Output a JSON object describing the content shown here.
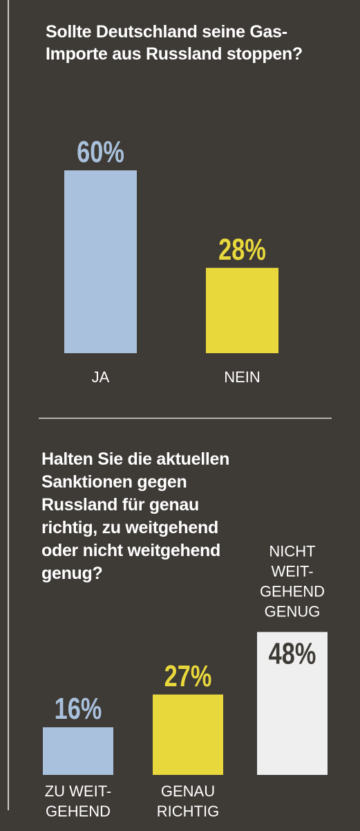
{
  "chart_data": [
    {
      "type": "bar",
      "title": "Sollte Deutschland seine Gas-Importe aus Russland stoppen?",
      "categories": [
        "JA",
        "NEIN"
      ],
      "values": [
        60,
        28
      ],
      "value_labels": [
        "60%",
        "28%"
      ],
      "colors": [
        "#a9c1dc",
        "#e8d83c"
      ],
      "label_colors": [
        "#a9c1dc",
        "#e8d83c"
      ],
      "ylim": [
        0,
        100
      ],
      "grid": false
    },
    {
      "type": "bar",
      "title": "Halten Sie die aktuellen Sanktionen gegen Russland für genau richtig, zu weitgehend oder nicht weitgehend genug?",
      "categories": [
        [
          "ZU WEIT-",
          "GEHEND"
        ],
        [
          "GENAU",
          "RICHTIG"
        ],
        [
          "NICHT",
          "WEIT-",
          "GEHEND",
          "GENUG"
        ]
      ],
      "values": [
        16,
        27,
        48
      ],
      "value_labels": [
        "16%",
        "27%",
        "48%"
      ],
      "colors": [
        "#a9c1dc",
        "#e8d83c",
        "#efefef"
      ],
      "label_colors": [
        "#a9c1dc",
        "#e8d83c",
        "#3e3a36"
      ],
      "ylim": [
        0,
        100
      ],
      "grid": false
    }
  ]
}
